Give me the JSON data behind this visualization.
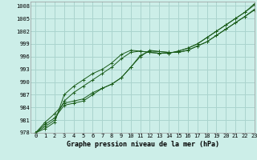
{
  "bg_color": "#cceee8",
  "grid_color": "#aad4ce",
  "line_color": "#1a5c1a",
  "title": "Graphe pression niveau de la mer (hPa)",
  "xlim": [
    -0.5,
    23
  ],
  "ylim": [
    978,
    1009
  ],
  "yticks": [
    978,
    981,
    984,
    987,
    990,
    993,
    996,
    999,
    1002,
    1005,
    1008
  ],
  "xticks": [
    0,
    1,
    2,
    3,
    4,
    5,
    6,
    7,
    8,
    9,
    10,
    11,
    12,
    13,
    14,
    15,
    16,
    17,
    18,
    19,
    20,
    21,
    22,
    23
  ],
  "series": [
    [
      978,
      980.5,
      982.5,
      985,
      985.5,
      986,
      987.5,
      988.5,
      989.5,
      991,
      993.5,
      996,
      997.5,
      997.2,
      997,
      997,
      997.5,
      998.5,
      999.5,
      1001,
      1002.5,
      1004,
      1005.5,
      1007
    ],
    [
      978,
      980,
      981.5,
      984.5,
      985,
      985.5,
      987,
      988.5,
      989.5,
      991,
      993.5,
      996.3,
      997.3,
      997.2,
      997,
      997,
      997.5,
      998.5,
      999.5,
      1001,
      1002.5,
      1004,
      1005.5,
      1007.2
    ],
    [
      978,
      979.5,
      981,
      985.5,
      987.5,
      989,
      990.5,
      992,
      993.5,
      995.5,
      997,
      997.3,
      997,
      996.8,
      996.8,
      997.3,
      998,
      999,
      1000.5,
      1002,
      1003.5,
      1005,
      1006.5,
      1008.2
    ],
    [
      978,
      979,
      980.5,
      987,
      989,
      990.5,
      992,
      993,
      994.5,
      996.5,
      997.5,
      997.3,
      997,
      996.8,
      996.8,
      997.3,
      998,
      999,
      1000.5,
      1002,
      1003.5,
      1005,
      1006.5,
      1008.5
    ]
  ]
}
